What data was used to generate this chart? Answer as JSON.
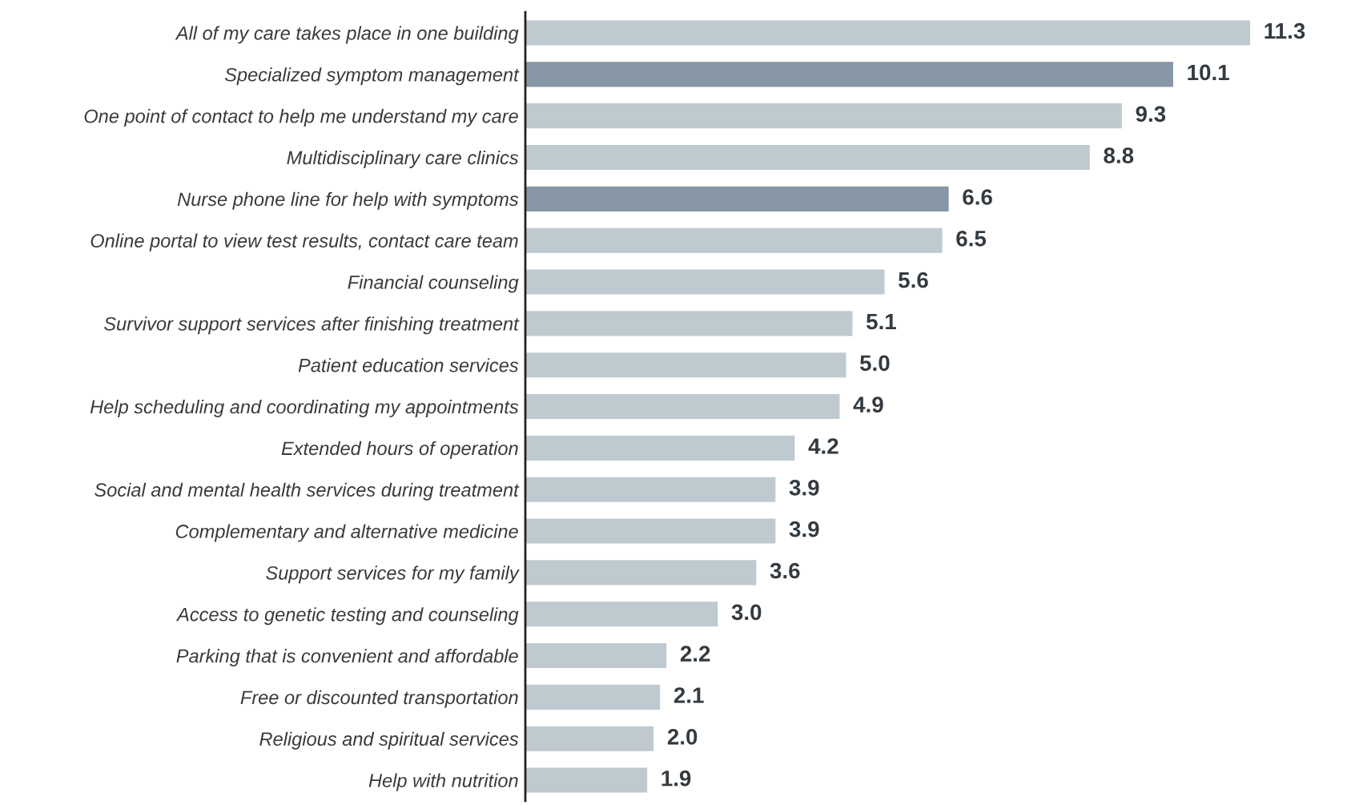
{
  "chart_data": {
    "type": "bar",
    "orientation": "horizontal",
    "value_labels": [
      "11.3",
      "10.1",
      "9.3",
      "8.8",
      "6.6",
      "6.5",
      "5.6",
      "5.1",
      "5.0",
      "4.9",
      "4.2",
      "3.9",
      "3.9",
      "3.6",
      "3.0",
      "2.2",
      "2.1",
      "2.0",
      "1.9"
    ],
    "tick_labels": "y",
    "grid": false,
    "legend": false,
    "categories": [
      "All of my care takes place in one building",
      "Specialized symptom management",
      "One point of contact to help me understand my care",
      "Multidisciplinary care clinics",
      "Nurse phone line for help with symptoms",
      "Online portal to view test results, contact care team",
      "Financial counseling",
      "Survivor support services after finishing treatment",
      "Patient education services",
      "Help scheduling and coordinating my appointments",
      "Extended hours of operation",
      "Social and mental health services during treatment",
      "Complementary and alternative medicine",
      "Support services for my family",
      "Access to genetic testing and counseling",
      "Parking that is convenient and affordable",
      "Free or discounted transportation",
      "Religious and spiritual services",
      "Help with nutrition"
    ],
    "values": [
      11.3,
      10.1,
      9.3,
      8.8,
      6.6,
      6.5,
      5.6,
      5.1,
      5.0,
      4.9,
      4.2,
      3.9,
      3.9,
      3.6,
      3.0,
      2.2,
      2.1,
      2.0,
      1.9
    ],
    "colors": [
      "#bfc9d0",
      "#8796a4",
      "#bfc9d0",
      "#bfc9d0",
      "#8796a4",
      "#bfc9d0",
      "#bfc9d0",
      "#bfc9d0",
      "#bfc9d0",
      "#bfc9d0",
      "#bfc9d0",
      "#bfc9d0",
      "#bfc9d0",
      "#bfc9d0",
      "#bfc9d0",
      "#bfc9d0",
      "#bfc9d0",
      "#bfc9d0",
      "#bfc9d0"
    ]
  }
}
